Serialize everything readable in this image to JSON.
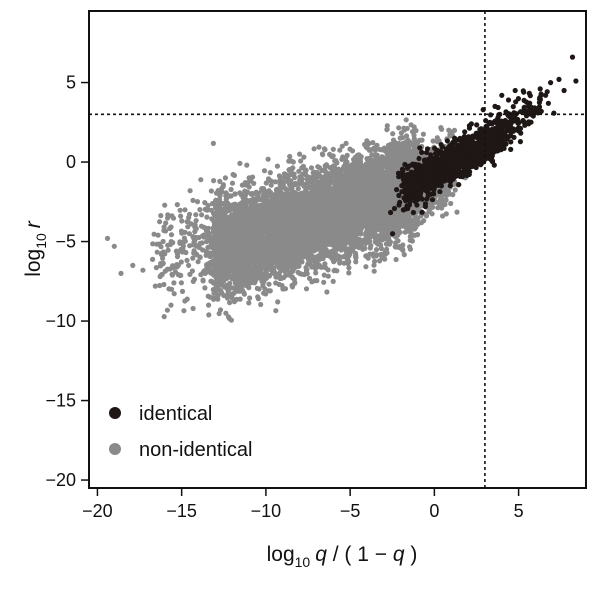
{
  "chart_data": {
    "type": "scatter",
    "title": "",
    "xlabel": {
      "prefix": "log",
      "sub": "10",
      "var": "q",
      "rest1": " / ( 1 − ",
      "var2": "q",
      "rest2": " )"
    },
    "ylabel": {
      "prefix": "log",
      "sub": "10",
      "var": "r"
    },
    "xlim": [
      -20.5,
      9.0
    ],
    "ylim": [
      -20.5,
      9.5
    ],
    "x_ticks": [
      -20,
      -15,
      -10,
      -5,
      0,
      5
    ],
    "y_ticks": [
      -20,
      -15,
      -10,
      -5,
      0,
      5
    ],
    "x_tick_labels": [
      "−20",
      "−15",
      "−10",
      "−5",
      "0",
      "5"
    ],
    "y_tick_labels": [
      "−20",
      "−15",
      "−10",
      "−5",
      "0",
      "5"
    ],
    "reference_lines": {
      "vertical_x": 3,
      "horizontal_y": 3,
      "style": "dotted"
    },
    "grid": false,
    "legend_position": "bottom-left",
    "series": [
      {
        "name": "identical",
        "color": "#1e1715",
        "clusters": [
          {
            "n": 1400,
            "x_range": [
              -1.5,
              4.0
            ],
            "slope": 0.55,
            "y_at_x0": -0.6,
            "spread": 0.55
          },
          {
            "n": 160,
            "x_range": [
              2.5,
              6.5
            ],
            "slope": 0.62,
            "y_at_x0": -0.4,
            "spread": 0.6
          },
          {
            "n": 70,
            "x_range": [
              -2.2,
              0.0
            ],
            "slope": 0.55,
            "y_at_x0": -0.8,
            "spread": 1.0
          }
        ],
        "points": [
          [
            8.2,
            6.6
          ],
          [
            8.4,
            5.1
          ],
          [
            6.9,
            5.0
          ],
          [
            7.4,
            5.2
          ],
          [
            7.7,
            4.5
          ],
          [
            6.6,
            4.2
          ],
          [
            5.3,
            4.4
          ],
          [
            4.8,
            4.5
          ],
          [
            4.4,
            3.9
          ],
          [
            3.6,
            3.5
          ],
          [
            2.9,
            3.3
          ],
          [
            4.0,
            4.2
          ],
          [
            1.8,
            1.9
          ],
          [
            1.2,
            1.5
          ],
          [
            -1.1,
            -1.6
          ],
          [
            -1.7,
            -2.3
          ],
          [
            -2.1,
            -2.7
          ],
          [
            0.4,
            1.1
          ],
          [
            2.2,
            2.4
          ],
          [
            6.2,
            3.4
          ]
        ]
      },
      {
        "name": "non-identical",
        "color": "#8a8a8a",
        "clusters": [
          {
            "n": 6500,
            "x_range": [
              -13.0,
              -1.0
            ],
            "slope": 0.33,
            "y_at_x0": -1.2,
            "spread": 1.5
          },
          {
            "n": 900,
            "x_range": [
              -4.0,
              1.0
            ],
            "slope": 0.35,
            "y_at_x0": -1.0,
            "spread": 1.1
          },
          {
            "n": 220,
            "x_range": [
              -16.5,
              -12.0
            ],
            "slope": 0.3,
            "y_at_x0": -1.0,
            "spread": 1.6
          }
        ],
        "points": [
          [
            -19.4,
            -4.8
          ],
          [
            -19.0,
            -5.3
          ],
          [
            -18.6,
            -7.0
          ],
          [
            -17.9,
            -6.5
          ],
          [
            -17.3,
            -6.8
          ],
          [
            -16.4,
            -4.6
          ],
          [
            -16.1,
            -5.0
          ],
          [
            -15.6,
            -8.0
          ],
          [
            -15.2,
            -6.5
          ],
          [
            -14.8,
            -3.0
          ],
          [
            -13.9,
            -6.0
          ],
          [
            -13.6,
            -7.0
          ],
          [
            -13.4,
            -9.0
          ],
          [
            -12.9,
            -8.5
          ],
          [
            -12.6,
            -7.2
          ],
          [
            -14.5,
            -1.8
          ],
          [
            -8.0,
            0.5
          ],
          [
            -6.0,
            0.8
          ],
          [
            -3.5,
            0.9
          ],
          [
            -11.0,
            -1.0
          ],
          [
            -1.0,
            1.2
          ]
        ]
      }
    ]
  }
}
